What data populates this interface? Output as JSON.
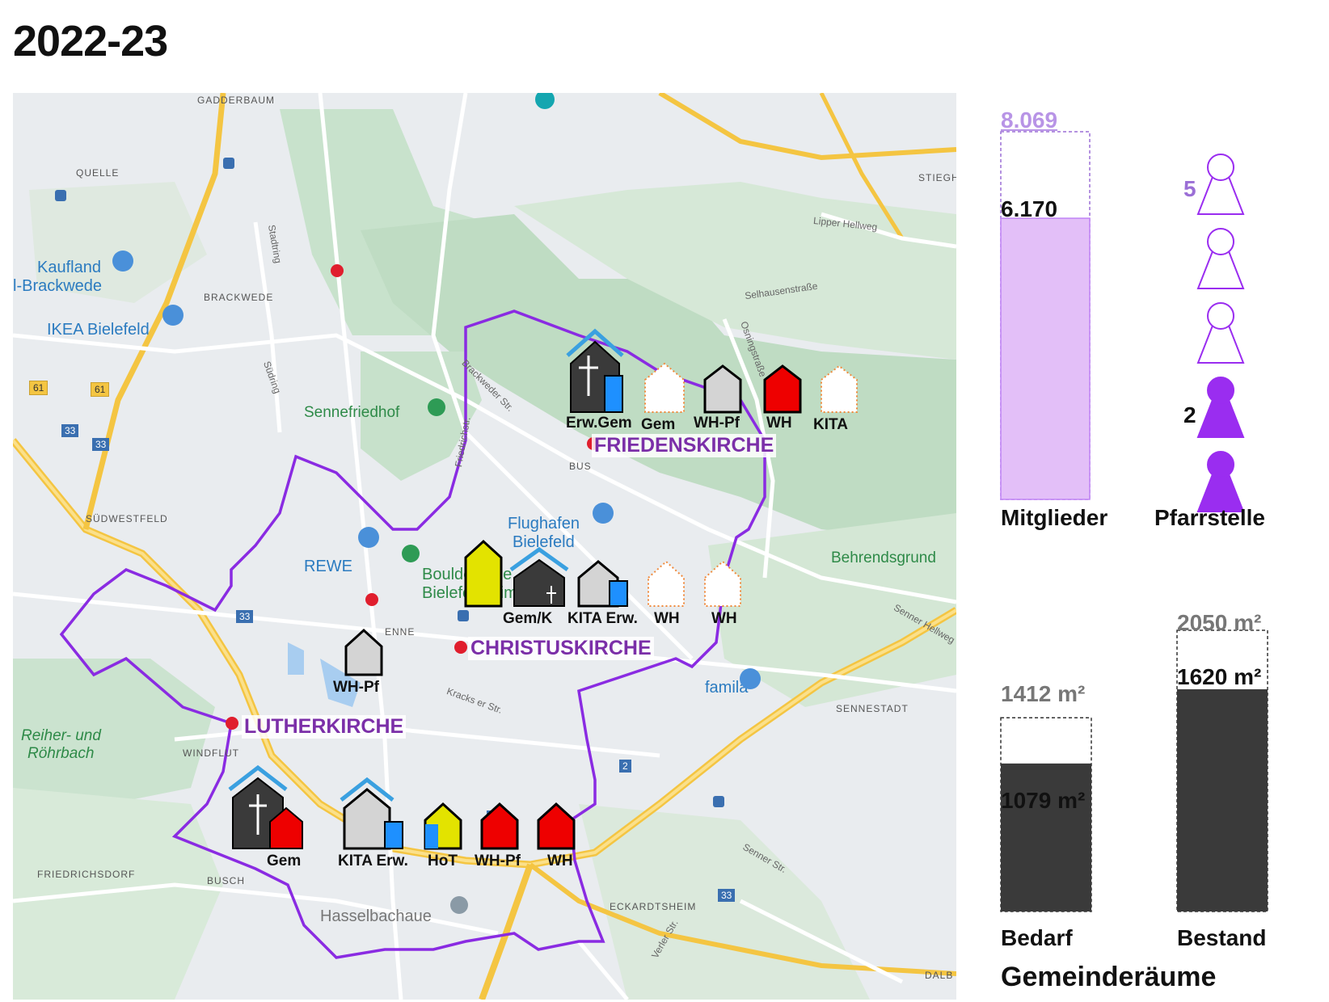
{
  "title": "2022-23",
  "map": {
    "churches": [
      "FRIEDENSKIRCHE",
      "CHRISTUSKIRCHE",
      "LUTHERKIRCHE"
    ],
    "buildings": {
      "frieden": [
        "Erw.Gem",
        "Gem",
        "WH-Pf",
        "WH",
        "KITA"
      ],
      "christus": [
        "Gem/K",
        "KITA Erw.",
        "WH",
        "WH"
      ],
      "christus_extra": "WH-Pf",
      "luther": [
        "Gem",
        "KITA Erw.",
        "HoT",
        "WH-Pf",
        "WH"
      ]
    },
    "places": [
      "GADDERBAUM",
      "QUELLE",
      "BRACKWEDE",
      "SÜDWESTFELD",
      "SENNESTADT",
      "FRIEDRICHSDORF",
      "WINDFLUT",
      "ECKARDTSHEIM",
      "STIEGH",
      "DALB",
      "ENNE",
      "BUSCH",
      "BUS"
    ],
    "pois": [
      "Kaufland",
      "l-Brackwede",
      "IKEA Bielefeld",
      "REWE",
      "Flughafen",
      "Bielefeld",
      "famila",
      "Boulderhalle",
      "Bielefeld climb",
      "Hasselbachaue"
    ],
    "green": [
      "Sennefriedhof",
      "Behrendsgrund",
      "Reiher- und",
      "Röhrbach"
    ],
    "roads": [
      "Lipper Hellweg",
      "Selhausenstraße",
      "Osningstraße",
      "Stadtring",
      "Südring",
      "Brackweder Str.",
      "Friedrichstr.",
      "Kracks er Str.",
      "Senner Hellweg",
      "Senner Str.",
      "Verler Str."
    ],
    "road_numbers": [
      "61",
      "61",
      "33",
      "33",
      "33",
      "33",
      "33",
      "2"
    ]
  },
  "chart_data": [
    {
      "type": "bar",
      "title": "",
      "xlabel": "Mitglieder",
      "series": [
        {
          "values": [
            8069
          ],
          "label": "8.069",
          "style": "dashed-outline",
          "color": "#9b6fd6"
        },
        {
          "values": [
            6170
          ],
          "label": "6.170",
          "style": "filled",
          "color": "#e3bff8"
        }
      ]
    },
    {
      "type": "pictogram",
      "xlabel": "Pfarrstelle",
      "total": 5,
      "total_label": "5",
      "filled": 2,
      "filled_label": "2",
      "color": "#9a2df0"
    },
    {
      "type": "bar",
      "title": "Gemeinderäume",
      "categories": [
        "Bedarf",
        "Bestand"
      ],
      "series": [
        {
          "values": [
            1412,
            2050
          ],
          "labels": [
            "1412 m²",
            "2050 m²"
          ],
          "style": "dashed-outline"
        },
        {
          "values": [
            1079,
            1620
          ],
          "labels": [
            "1079 m²",
            "1620 m²"
          ],
          "style": "filled",
          "color": "#3a3a3a"
        }
      ]
    }
  ]
}
